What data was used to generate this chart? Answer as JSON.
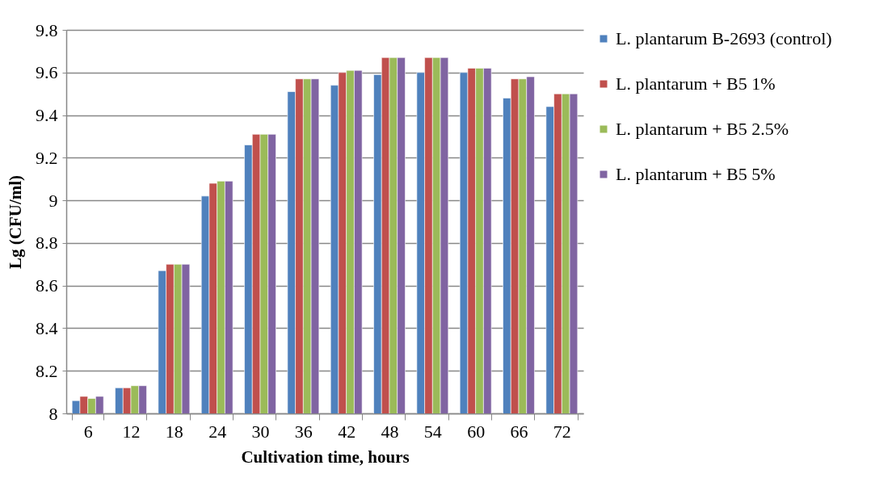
{
  "chart_data": {
    "type": "bar",
    "xlabel": "Cultivation time, hours",
    "ylabel": "Lg (CFU/ml)",
    "categories": [
      "6",
      "12",
      "18",
      "24",
      "30",
      "36",
      "42",
      "48",
      "54",
      "60",
      "66",
      "72"
    ],
    "series": [
      {
        "name": "L. plantarum B-2693 (control)",
        "color": "#4f81bd",
        "values": [
          8.06,
          8.12,
          8.67,
          9.02,
          9.26,
          9.51,
          9.54,
          9.59,
          9.6,
          9.6,
          9.48,
          9.44
        ]
      },
      {
        "name": "L. plantarum + B5 1%",
        "color": "#c0504d",
        "values": [
          8.08,
          8.12,
          8.7,
          9.08,
          9.31,
          9.57,
          9.6,
          9.67,
          9.67,
          9.62,
          9.57,
          9.5
        ]
      },
      {
        "name": "L. plantarum + B5 2.5%",
        "color": "#9bbb59",
        "values": [
          8.07,
          8.13,
          8.7,
          9.09,
          9.31,
          9.57,
          9.61,
          9.67,
          9.67,
          9.62,
          9.57,
          9.5
        ]
      },
      {
        "name": "L. plantarum  + B5 5%",
        "color": "#8064a2",
        "values": [
          8.08,
          8.13,
          8.7,
          9.09,
          9.31,
          9.57,
          9.61,
          9.67,
          9.67,
          9.62,
          9.58,
          9.5
        ]
      }
    ],
    "ylim": [
      8,
      9.8
    ],
    "yticks": [
      8,
      8.2,
      8.4,
      8.6,
      8.8,
      9,
      9.2,
      9.4,
      9.6,
      9.8
    ],
    "grid": "y",
    "legend": "right"
  }
}
